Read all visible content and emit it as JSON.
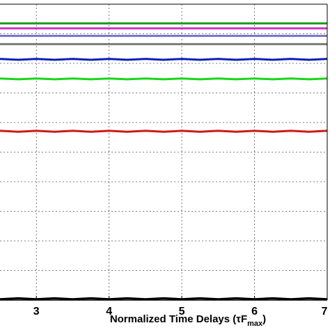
{
  "chart_data": {
    "type": "line",
    "xlabel": "Normalized Time Delays (τF",
    "xlabel_sub": "max",
    "xlabel_close": ")",
    "xlim": [
      2.5,
      7
    ],
    "x_ticks": [
      3,
      4,
      5,
      6,
      7
    ],
    "grid": true,
    "x": [
      2.5,
      2.75,
      3.0,
      3.25,
      3.5,
      3.75,
      4.0,
      4.25,
      4.5,
      4.75,
      5.0,
      5.25,
      5.5,
      5.75,
      6.0,
      6.25,
      6.5,
      6.75,
      7.0
    ],
    "series": [
      {
        "color": "#1a9e1a",
        "values": [
          0.935,
          0.935,
          0.935,
          0.935,
          0.935,
          0.935,
          0.935,
          0.935,
          0.935,
          0.935,
          0.935,
          0.935,
          0.935,
          0.935,
          0.935,
          0.935,
          0.935,
          0.935,
          0.935
        ]
      },
      {
        "color": "#cc33cc",
        "values": [
          0.918,
          0.918,
          0.918,
          0.918,
          0.918,
          0.918,
          0.918,
          0.918,
          0.918,
          0.918,
          0.918,
          0.918,
          0.918,
          0.918,
          0.918,
          0.918,
          0.918,
          0.918,
          0.918
        ]
      },
      {
        "color": "#7777cc",
        "values": [
          0.893,
          0.893,
          0.893,
          0.893,
          0.893,
          0.893,
          0.893,
          0.893,
          0.893,
          0.893,
          0.893,
          0.893,
          0.893,
          0.893,
          0.893,
          0.893,
          0.893,
          0.893,
          0.893
        ]
      },
      {
        "color": "#7a7a7a",
        "values": [
          0.865,
          0.865,
          0.865,
          0.865,
          0.865,
          0.865,
          0.865,
          0.865,
          0.865,
          0.865,
          0.865,
          0.865,
          0.865,
          0.865,
          0.865,
          0.865,
          0.865,
          0.865,
          0.865
        ]
      },
      {
        "color": "#0b1fb5",
        "values": [
          0.815,
          0.812,
          0.815,
          0.812,
          0.815,
          0.812,
          0.815,
          0.812,
          0.815,
          0.812,
          0.815,
          0.812,
          0.815,
          0.812,
          0.815,
          0.812,
          0.815,
          0.812,
          0.815
        ]
      },
      {
        "color": "#19d619",
        "values": [
          0.749,
          0.746,
          0.749,
          0.746,
          0.749,
          0.746,
          0.749,
          0.746,
          0.749,
          0.746,
          0.749,
          0.746,
          0.749,
          0.746,
          0.749,
          0.746,
          0.749,
          0.746,
          0.749
        ]
      },
      {
        "color": "#cc1a1a",
        "values": [
          0.572,
          0.569,
          0.572,
          0.569,
          0.572,
          0.569,
          0.572,
          0.569,
          0.572,
          0.569,
          0.572,
          0.569,
          0.572,
          0.569,
          0.572,
          0.569,
          0.572,
          0.569,
          0.572
        ]
      },
      {
        "color": "#000000",
        "values": [
          0.003,
          0.006,
          0.003,
          0.006,
          0.003,
          0.006,
          0.003,
          0.006,
          0.003,
          0.006,
          0.003,
          0.006,
          0.003,
          0.006,
          0.003,
          0.006,
          0.003,
          0.006,
          0.003
        ]
      }
    ]
  }
}
